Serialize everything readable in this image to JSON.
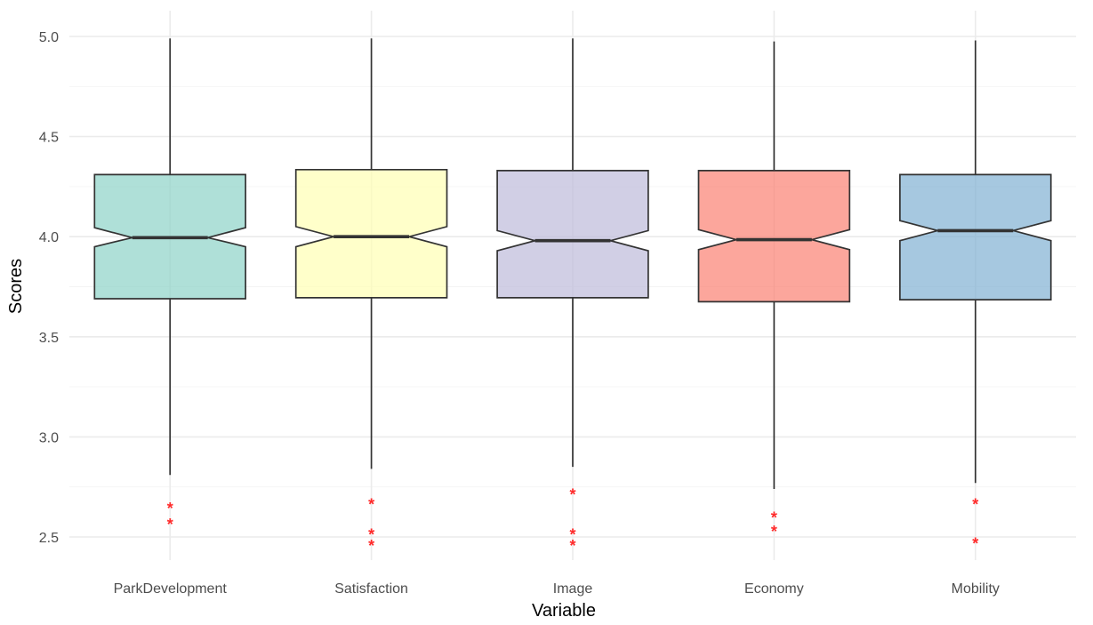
{
  "chart_data": {
    "type": "boxplot",
    "notched": true,
    "xlabel": "Variable",
    "ylabel": "Scores",
    "ylim": [
      2.35,
      5.12
    ],
    "y_ticks": [
      2.5,
      3.0,
      3.5,
      4.0,
      4.5,
      5.0
    ],
    "y_tick_labels": [
      "2.5",
      "3.0",
      "3.5",
      "4.0",
      "4.5",
      "5.0"
    ],
    "grid": true,
    "legend": "none",
    "categories": [
      "ParkDevelopment",
      "Satisfaction",
      "Image",
      "Economy",
      "Mobility"
    ],
    "boxes": [
      {
        "category": "ParkDevelopment",
        "whisker_low": 2.81,
        "q1": 3.69,
        "median": 3.995,
        "q3": 4.31,
        "whisker_high": 4.99,
        "notch_low": 3.95,
        "notch_high": 4.045,
        "outliers": [
          2.65,
          2.57
        ],
        "color": "#8dd3c7"
      },
      {
        "category": "Satisfaction",
        "whisker_low": 2.84,
        "q1": 3.695,
        "median": 4.0,
        "q3": 4.335,
        "whisker_high": 4.99,
        "notch_low": 3.95,
        "notch_high": 4.05,
        "outliers": [
          2.67,
          2.52,
          2.465
        ],
        "color": "#ffffb3"
      },
      {
        "category": "Image",
        "whisker_low": 2.85,
        "q1": 3.695,
        "median": 3.98,
        "q3": 4.33,
        "whisker_high": 4.99,
        "notch_low": 3.93,
        "notch_high": 4.03,
        "outliers": [
          2.72,
          2.52,
          2.465
        ],
        "color": "#bebada"
      },
      {
        "category": "Economy",
        "whisker_low": 2.74,
        "q1": 3.675,
        "median": 3.985,
        "q3": 4.33,
        "whisker_high": 4.975,
        "notch_low": 3.935,
        "notch_high": 4.035,
        "outliers": [
          2.605,
          2.535
        ],
        "color": "#fb8072"
      },
      {
        "category": "Mobility",
        "whisker_low": 2.77,
        "q1": 3.685,
        "median": 4.03,
        "q3": 4.31,
        "whisker_high": 4.98,
        "notch_low": 3.98,
        "notch_high": 4.08,
        "outliers": [
          2.67,
          2.475
        ],
        "color": "#80b1d3"
      }
    ],
    "box_opacity": 0.7,
    "outlier_color": "#ff2a2a"
  }
}
